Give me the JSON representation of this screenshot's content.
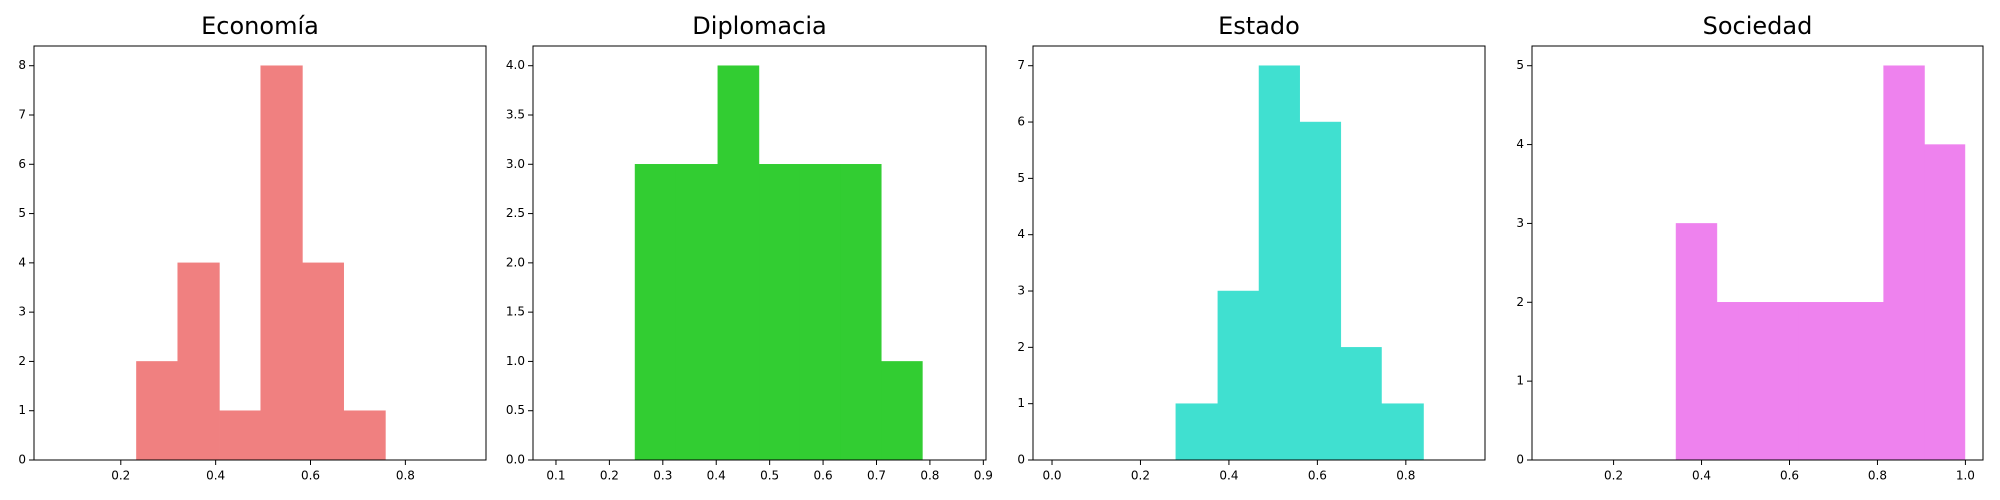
{
  "chart_data": [
    {
      "type": "histogram",
      "title": "Economía",
      "color": "#f08080",
      "bins": [
        0.233,
        0.32,
        0.408,
        0.495,
        0.583,
        0.67,
        0.758
      ],
      "values": [
        2,
        4,
        1,
        8,
        4,
        1
      ],
      "xlim": [
        0.017,
        0.97
      ],
      "xticks": [
        0.2,
        0.4,
        0.6,
        0.8
      ],
      "ylim": [
        0,
        8.4
      ],
      "yticks": [
        0,
        1,
        2,
        3,
        4,
        5,
        6,
        7,
        8
      ]
    },
    {
      "type": "histogram",
      "title": "Diplomacia",
      "color": "#32cd32",
      "bins": [
        0.248,
        0.325,
        0.403,
        0.48,
        0.556,
        0.633,
        0.709,
        0.786
      ],
      "values": [
        3,
        3,
        4,
        3,
        3,
        3,
        1
      ],
      "xlim": [
        0.057,
        0.905
      ],
      "xticks": [
        0.1,
        0.2,
        0.3,
        0.4,
        0.5,
        0.6,
        0.7,
        0.8,
        0.9
      ],
      "ylim": [
        0,
        4.2
      ],
      "yticks": [
        {
          "value": 0,
          "label": "0.0"
        },
        0.5,
        {
          "value": 1,
          "label": "1.0"
        },
        1.5,
        {
          "value": 2,
          "label": "2.0"
        },
        2.5,
        {
          "value": 3,
          "label": "3.0"
        },
        3.5,
        {
          "value": 4,
          "label": "4.0"
        }
      ]
    },
    {
      "type": "histogram",
      "title": "Estado",
      "color": "#40e0d0",
      "bins": [
        0.28,
        0.375,
        0.468,
        0.56,
        0.653,
        0.745,
        0.84
      ],
      "values": [
        1,
        3,
        7,
        6,
        2,
        1
      ],
      "xlim": [
        -0.043,
        0.979
      ],
      "xticks": [
        {
          "value": 0,
          "label": "0.0"
        },
        0.2,
        0.4,
        0.6,
        0.8
      ],
      "ylim": [
        0,
        7.35
      ],
      "yticks": [
        0,
        1,
        2,
        3,
        4,
        5,
        6,
        7
      ]
    },
    {
      "type": "histogram",
      "title": "Sociedad",
      "color": "#ee82ee",
      "bins": [
        0.342,
        0.435,
        0.528,
        0.621,
        0.714,
        0.814,
        0.907,
        0.999
      ],
      "values": [
        3,
        2,
        2,
        2,
        2,
        5,
        4
      ],
      "xlim": [
        0.0145,
        1.04
      ],
      "xticks": [
        0.2,
        0.4,
        0.6,
        0.8,
        {
          "value": 1,
          "label": "1.0"
        }
      ],
      "ylim": [
        0,
        5.25
      ],
      "yticks": [
        0,
        1,
        2,
        3,
        4,
        5
      ]
    }
  ]
}
